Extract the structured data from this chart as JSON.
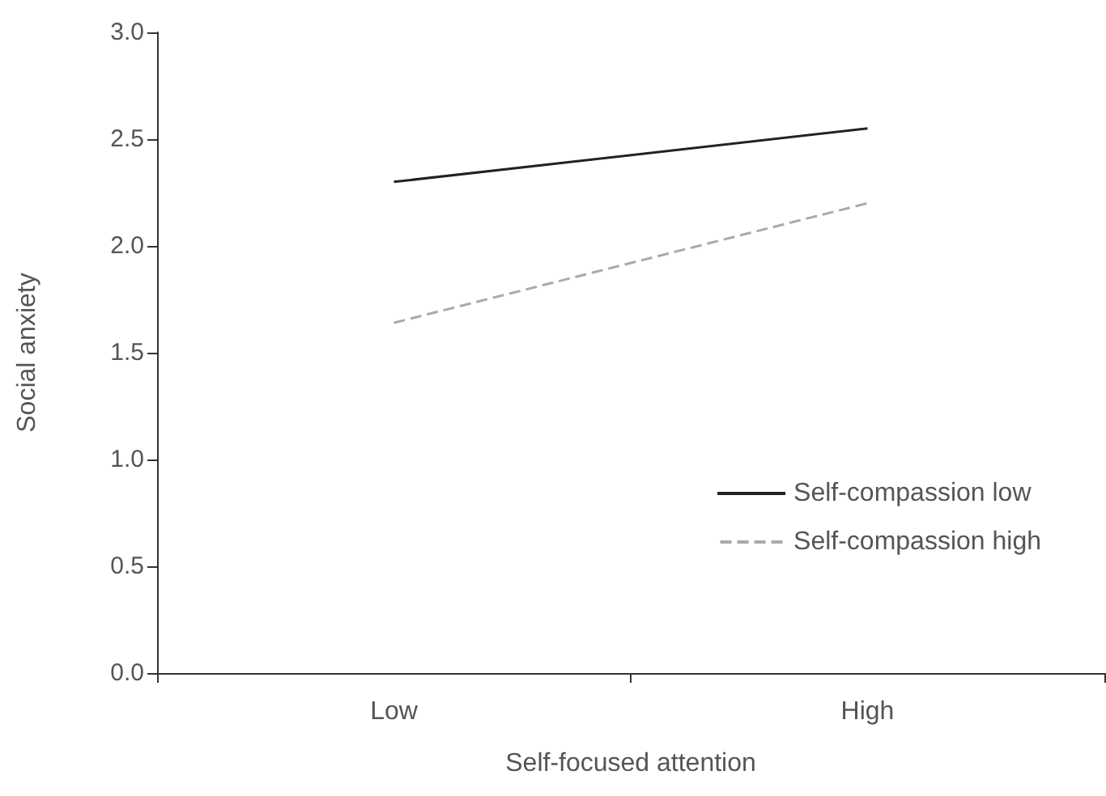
{
  "chart_data": {
    "type": "line",
    "xlabel": "Self-focused attention",
    "ylabel": "Social anxiety",
    "categories": [
      "Low",
      "High"
    ],
    "series": [
      {
        "name": "Self-compassion low",
        "color": "#222222",
        "line_style": "solid",
        "values": [
          2.3,
          2.55
        ]
      },
      {
        "name": "Self-compassion high",
        "color": "#aaaaaa",
        "line_style": "dashed",
        "values": [
          1.64,
          2.2
        ]
      }
    ],
    "ylim": [
      0,
      3
    ],
    "yticks": [
      {
        "value": 0,
        "label": "0.0"
      },
      {
        "value": 0.5,
        "label": "0.5"
      },
      {
        "value": 1,
        "label": "1.0"
      },
      {
        "value": 1.5,
        "label": "1.5"
      },
      {
        "value": 2,
        "label": "2.0"
      },
      {
        "value": 2.5,
        "label": "2.5"
      },
      {
        "value": 3,
        "label": "3.0"
      }
    ],
    "grid": false,
    "legend": "bottom right",
    "marker": "none"
  }
}
